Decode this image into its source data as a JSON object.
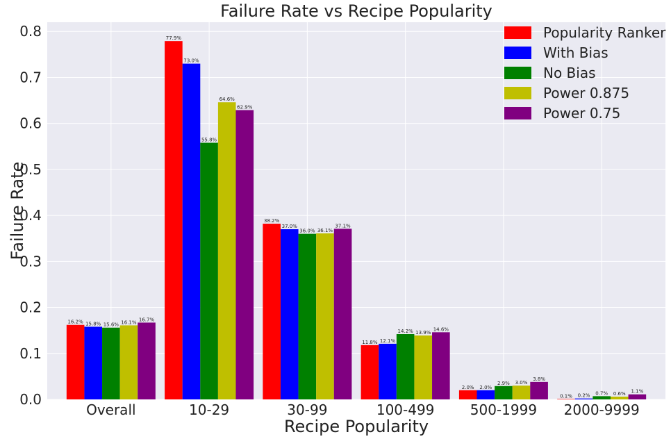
{
  "chart_data": {
    "type": "bar",
    "title": "Failure Rate vs Recipe Popularity",
    "xlabel": "Recipe Popularity",
    "ylabel": "Failure Rate",
    "ylim": [
      0,
      0.82
    ],
    "yticks": [
      0.0,
      0.1,
      0.2,
      0.3,
      0.4,
      0.5,
      0.6,
      0.7,
      0.8
    ],
    "ytick_labels": [
      "0.0",
      "0.1",
      "0.2",
      "0.3",
      "0.4",
      "0.5",
      "0.6",
      "0.7",
      "0.8"
    ],
    "categories": [
      "Overall",
      "10-29",
      "30-99",
      "100-499",
      "500-1999",
      "2000-9999"
    ],
    "grid": true,
    "legend_position": "top-right",
    "series": [
      {
        "name": "Popularity Ranker",
        "color": "#ff0000",
        "values": [
          0.162,
          0.779,
          0.382,
          0.118,
          0.02,
          0.001
        ],
        "labels": [
          "16.2%",
          "77.9%",
          "38.2%",
          "11.8%",
          "2.0%",
          "0.1%"
        ]
      },
      {
        "name": "With Bias",
        "color": "#0000ff",
        "values": [
          0.158,
          0.73,
          0.37,
          0.121,
          0.02,
          0.002
        ],
        "labels": [
          "15.8%",
          "73.0%",
          "37.0%",
          "12.1%",
          "2.0%",
          "0.2%"
        ]
      },
      {
        "name": "No Bias",
        "color": "#008000",
        "values": [
          0.156,
          0.558,
          0.36,
          0.142,
          0.029,
          0.007
        ],
        "labels": [
          "15.6%",
          "55.8%",
          "36.0%",
          "14.2%",
          "2.9%",
          "0.7%"
        ]
      },
      {
        "name": "Power 0.875",
        "color": "#bfbf00",
        "values": [
          0.161,
          0.646,
          0.361,
          0.139,
          0.03,
          0.006
        ],
        "labels": [
          "16.1%",
          "64.6%",
          "36.1%",
          "13.9%",
          "3.0%",
          "0.6%"
        ]
      },
      {
        "name": "Power 0.75",
        "color": "#800080",
        "values": [
          0.167,
          0.629,
          0.371,
          0.146,
          0.038,
          0.011
        ],
        "labels": [
          "16.7%",
          "62.9%",
          "37.1%",
          "14.6%",
          "3.8%",
          "1.1%"
        ]
      }
    ],
    "background_color": "#eaeaf2",
    "grid_color": "#ffffff"
  }
}
